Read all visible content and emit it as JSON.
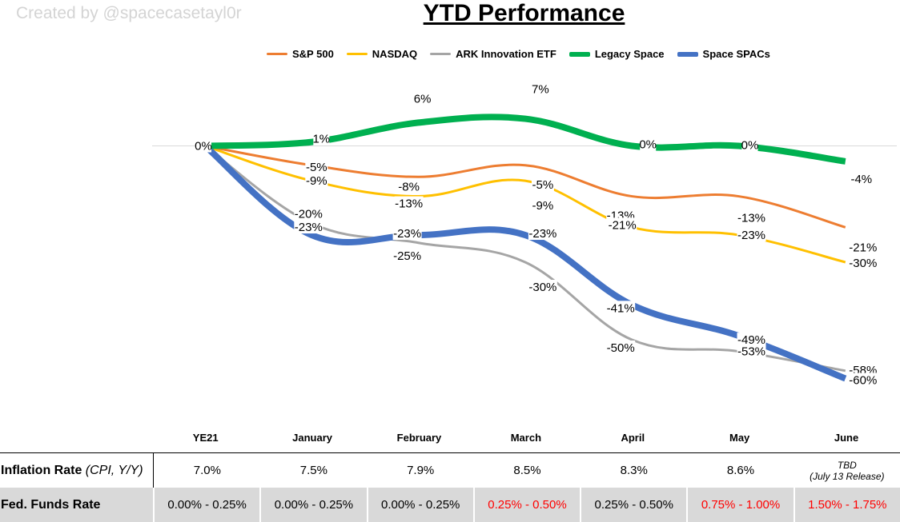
{
  "watermark": "Created by @spacecasetayl0r",
  "chart_data": {
    "type": "line",
    "title": "YTD Performance",
    "categories": [
      "YE21",
      "January",
      "February",
      "March",
      "April",
      "May",
      "June"
    ],
    "ylim": [
      -60,
      7
    ],
    "series": [
      {
        "name": "S&P 500",
        "color": "#ed7d31",
        "width": 3,
        "values": [
          0,
          -5,
          -8,
          -5,
          -13,
          -13,
          -21
        ]
      },
      {
        "name": "NASDAQ",
        "color": "#ffc000",
        "width": 3,
        "values": [
          0,
          -9,
          -13,
          -9,
          -21,
          -23,
          -30
        ]
      },
      {
        "name": "ARK Innovation ETF",
        "color": "#a5a5a5",
        "width": 3,
        "values": [
          0,
          -20,
          -25,
          -30,
          -50,
          -53,
          -58
        ]
      },
      {
        "name": "Legacy Space",
        "color": "#00b050",
        "width": 8,
        "values": [
          0,
          1,
          6,
          7,
          0,
          0,
          -4
        ]
      },
      {
        "name": "Space SPACs",
        "color": "#4472c4",
        "width": 8,
        "values": [
          0,
          -23,
          -23,
          -23,
          -41,
          -49,
          -60
        ]
      }
    ],
    "data_labels": [
      {
        "series": 0,
        "index": 0,
        "text": "0%"
      },
      {
        "series": 3,
        "index": 1,
        "text": "1%"
      },
      {
        "series": 3,
        "index": 2,
        "text": "6%"
      },
      {
        "series": 3,
        "index": 3,
        "text": "7%"
      },
      {
        "series": 3,
        "index": 4,
        "text": "0%"
      },
      {
        "series": 3,
        "index": 5,
        "text": "0%"
      },
      {
        "series": 3,
        "index": 6,
        "text": "-4%"
      },
      {
        "series": 0,
        "index": 1,
        "text": "-5%"
      },
      {
        "series": 0,
        "index": 2,
        "text": "-8%"
      },
      {
        "series": 0,
        "index": 3,
        "text": "-5%"
      },
      {
        "series": 0,
        "index": 4,
        "text": "-13%"
      },
      {
        "series": 0,
        "index": 5,
        "text": "-13%"
      },
      {
        "series": 0,
        "index": 6,
        "text": "-21%"
      },
      {
        "series": 1,
        "index": 1,
        "text": "-9%"
      },
      {
        "series": 1,
        "index": 2,
        "text": "-13%"
      },
      {
        "series": 1,
        "index": 3,
        "text": "-9%"
      },
      {
        "series": 1,
        "index": 4,
        "text": "-21%"
      },
      {
        "series": 1,
        "index": 5,
        "text": "-23%"
      },
      {
        "series": 1,
        "index": 6,
        "text": "-30%"
      },
      {
        "series": 2,
        "index": 1,
        "text": "-20%"
      },
      {
        "series": 2,
        "index": 2,
        "text": "-25%"
      },
      {
        "series": 2,
        "index": 3,
        "text": "-30%"
      },
      {
        "series": 2,
        "index": 4,
        "text": "-50%"
      },
      {
        "series": 2,
        "index": 5,
        "text": "-53%"
      },
      {
        "series": 2,
        "index": 6,
        "text": "-58%"
      },
      {
        "series": 4,
        "index": 1,
        "text": "-23%"
      },
      {
        "series": 4,
        "index": 2,
        "text": "-23%"
      },
      {
        "series": 4,
        "index": 3,
        "text": "-23%"
      },
      {
        "series": 4,
        "index": 4,
        "text": "-41%"
      },
      {
        "series": 4,
        "index": 5,
        "text": "-49%"
      },
      {
        "series": 4,
        "index": 6,
        "text": "-60%"
      }
    ]
  },
  "table": {
    "inflation": {
      "label": "Inflation Rate",
      "label_suffix": "(CPI, Y/Y)",
      "values": [
        "7.0%",
        "7.5%",
        "7.9%",
        "8.5%",
        "8.3%",
        "8.6%"
      ],
      "june_line1": "TBD",
      "june_line2": "(July 13 Release)"
    },
    "fed": {
      "label": "Fed. Funds Rate",
      "values": [
        {
          "text": "0.00% - 0.25%",
          "color": "#000000"
        },
        {
          "text": "0.00% - 0.25%",
          "color": "#000000"
        },
        {
          "text": "0.00% - 0.25%",
          "color": "#000000"
        },
        {
          "text": "0.25% - 0.50%",
          "color": "#ff0000"
        },
        {
          "text": "0.25% - 0.50%",
          "color": "#000000"
        },
        {
          "text": "0.75% - 1.00%",
          "color": "#ff0000"
        },
        {
          "text": "1.50% - 1.75%",
          "color": "#ff0000"
        }
      ]
    }
  }
}
